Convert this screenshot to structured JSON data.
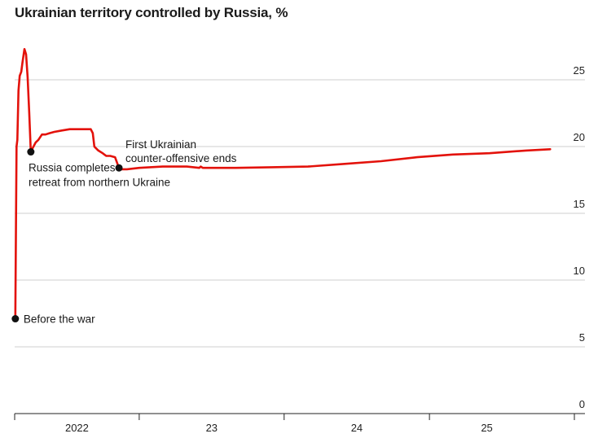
{
  "chart_data": {
    "type": "line",
    "title": "Ukrainian territory controlled by Russia, %",
    "xlabel": "",
    "ylabel": "",
    "ylim": [
      0,
      25
    ],
    "yticks": [
      0,
      5,
      10,
      15,
      20,
      25
    ],
    "xlim": [
      "2022-02-01",
      "2025-12-31"
    ],
    "xtick_labels": [
      "2022",
      "23",
      "24",
      "25"
    ],
    "grid": "horizontal",
    "series": [
      {
        "color": "#e3120b",
        "x": [
          "2022-02-23",
          "2022-02-24",
          "2022-02-26",
          "2022-02-28",
          "2022-03-03",
          "2022-03-06",
          "2022-03-10",
          "2022-03-13",
          "2022-03-18",
          "2022-03-22",
          "2022-03-26",
          "2022-03-30",
          "2022-04-03",
          "2022-04-08",
          "2022-04-15",
          "2022-04-22",
          "2022-05-01",
          "2022-05-10",
          "2022-05-20",
          "2022-06-01",
          "2022-06-20",
          "2022-07-10",
          "2022-08-01",
          "2022-08-20",
          "2022-09-01",
          "2022-09-06",
          "2022-09-10",
          "2022-09-13",
          "2022-09-20",
          "2022-10-01",
          "2022-10-10",
          "2022-10-20",
          "2022-11-01",
          "2022-11-11",
          "2022-11-15",
          "2022-12-01",
          "2023-01-01",
          "2023-03-01",
          "2023-05-01",
          "2023-06-01",
          "2023-06-05",
          "2023-06-10",
          "2023-07-01",
          "2023-09-01",
          "2023-12-01",
          "2024-03-01",
          "2024-06-01",
          "2024-09-01",
          "2024-12-01",
          "2025-03-01",
          "2025-06-01",
          "2025-09-01",
          "2025-11-01"
        ],
        "values": [
          7.1,
          11.5,
          20.0,
          20.5,
          24.2,
          25.3,
          25.6,
          26.3,
          27.3,
          26.9,
          25.2,
          22.5,
          19.6,
          19.9,
          20.3,
          20.5,
          20.9,
          20.9,
          21.0,
          21.1,
          21.2,
          21.3,
          21.3,
          21.3,
          21.3,
          21.0,
          20.0,
          19.9,
          19.7,
          19.5,
          19.3,
          19.3,
          19.2,
          18.4,
          18.3,
          18.3,
          18.4,
          18.5,
          18.5,
          18.4,
          18.5,
          18.4,
          18.4,
          18.4,
          18.45,
          18.5,
          18.7,
          18.9,
          19.2,
          19.4,
          19.5,
          19.7,
          19.8
        ]
      }
    ],
    "annotations": [
      {
        "label": "Before the war",
        "x": "2022-02-23",
        "y": 7.1
      },
      {
        "label": "Russia completes retreat from northern Ukraine",
        "lines": [
          "Russia completes",
          "retreat from northern Ukraine"
        ],
        "x": "2022-04-03",
        "y": 19.6
      },
      {
        "label": "First Ukrainian counter-offensive ends",
        "lines": [
          "First Ukrainian",
          "counter-offensive ends"
        ],
        "x": "2022-11-11",
        "y": 18.4
      }
    ]
  }
}
